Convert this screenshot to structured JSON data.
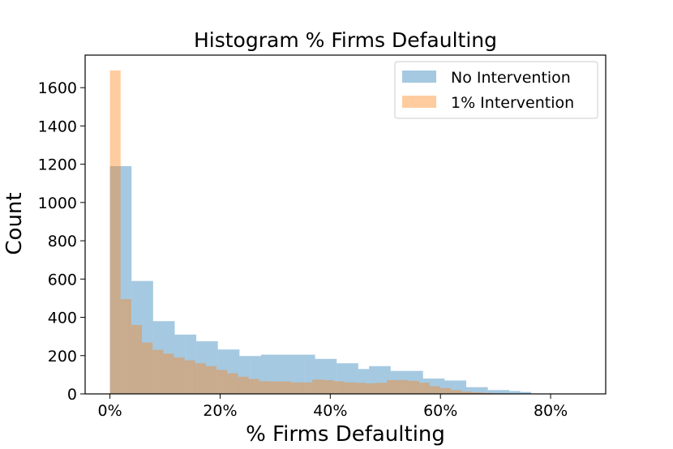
{
  "chart_data": {
    "type": "bar",
    "title": "Histogram % Firms Defaulting",
    "xlabel": "% Firms Defaulting",
    "ylabel": "Count",
    "xlim": [
      -0.045,
      0.9
    ],
    "ylim": [
      0,
      1770
    ],
    "x_ticks": [
      {
        "value": 0.0,
        "label": "0%"
      },
      {
        "value": 0.2,
        "label": "20%"
      },
      {
        "value": 0.4,
        "label": "40%"
      },
      {
        "value": 0.6,
        "label": "60%"
      },
      {
        "value": 0.8,
        "label": "80%"
      }
    ],
    "y_ticks": [
      0,
      200,
      400,
      600,
      800,
      1000,
      1200,
      1400,
      1600
    ],
    "legend_position": "top-right",
    "grid": false,
    "series": [
      {
        "name": "No Intervention",
        "color": "#1f77b4",
        "opacity": 0.4,
        "bin_start": 0.0,
        "bin_width": 0.0196,
        "values": [
          1190,
          1190,
          590,
          590,
          380,
          380,
          310,
          310,
          275,
          275,
          232,
          232,
          198,
          198,
          205,
          205,
          205,
          205,
          205,
          183,
          183,
          160,
          160,
          130,
          145,
          145,
          120,
          120,
          120,
          80,
          80,
          70,
          70,
          35,
          35,
          20,
          20,
          15,
          10,
          0,
          0,
          0,
          0
        ]
      },
      {
        "name": "1% Intervention",
        "color": "#ff7f0e",
        "opacity": 0.4,
        "bin_start": 0.0,
        "bin_width": 0.01935,
        "values": [
          1690,
          495,
          360,
          268,
          230,
          210,
          190,
          175,
          160,
          145,
          125,
          108,
          90,
          78,
          66,
          65,
          65,
          60,
          60,
          75,
          72,
          66,
          60,
          58,
          55,
          58,
          72,
          72,
          68,
          58,
          40,
          30,
          20,
          12,
          8,
          5,
          3,
          2,
          0,
          0,
          0,
          0,
          0,
          0
        ]
      }
    ]
  }
}
